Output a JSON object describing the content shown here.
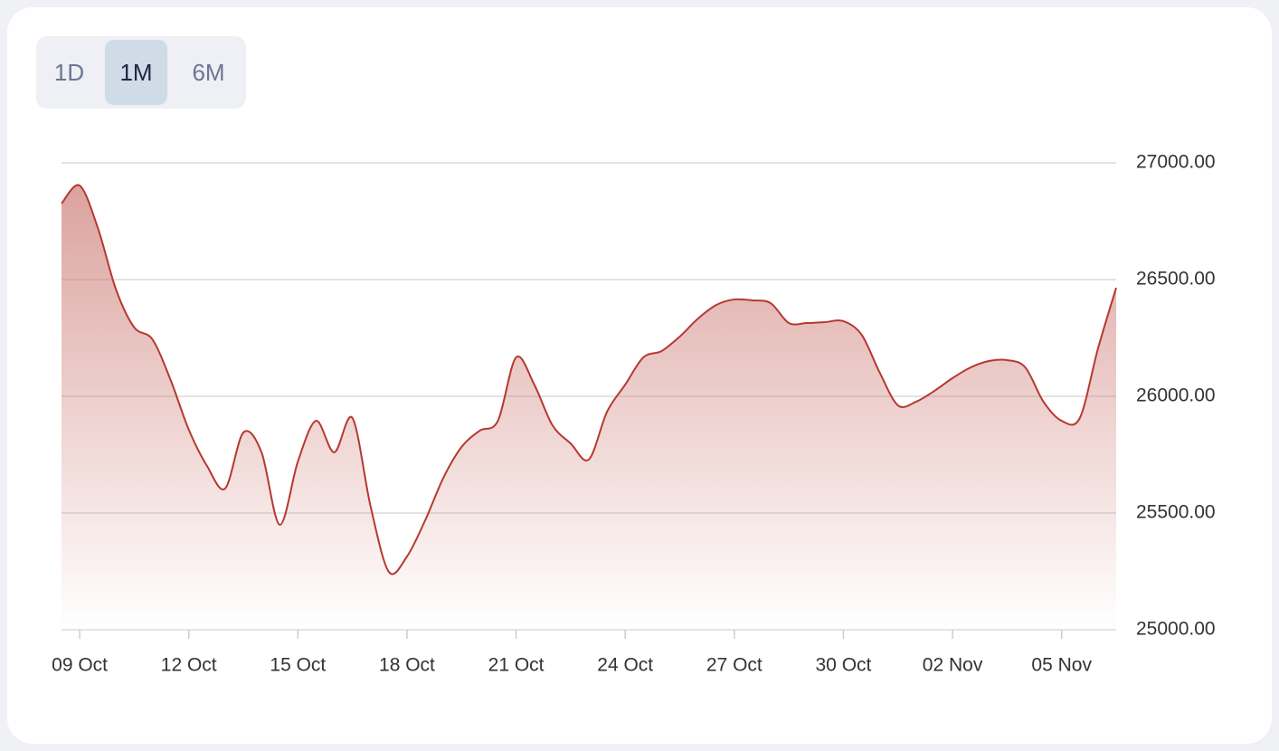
{
  "range_selector": {
    "options": [
      "1D",
      "1M",
      "6M"
    ],
    "selected": 1
  },
  "chart_data": {
    "type": "area",
    "categories": [
      null,
      "09 Oct",
      null,
      null,
      null,
      null,
      null,
      "12 Oct",
      null,
      null,
      null,
      null,
      null,
      "15 Oct",
      null,
      null,
      null,
      null,
      null,
      "18 Oct",
      null,
      null,
      null,
      null,
      null,
      "21 Oct",
      null,
      null,
      null,
      null,
      null,
      "24 Oct",
      null,
      null,
      null,
      null,
      null,
      "27 Oct",
      null,
      null,
      null,
      null,
      null,
      "30 Oct",
      null,
      null,
      null,
      null,
      null,
      "02 Nov",
      null,
      null,
      null,
      null,
      null,
      "05 Nov",
      null,
      null,
      null
    ],
    "series": [
      {
        "color": "#b5392f",
        "values": [
          26826,
          26903,
          26721,
          26457,
          26295,
          26244,
          26070,
          25857,
          25702,
          25605,
          25845,
          25760,
          25450,
          25721,
          25895,
          25760,
          25907,
          25527,
          25248,
          25314,
          25469,
          25651,
          25783,
          25853,
          25895,
          26167,
          26050,
          25876,
          25798,
          25729,
          25934,
          26050,
          26167,
          26194,
          26256,
          26333,
          26391,
          26415,
          26411,
          26399,
          26314,
          26314,
          26318,
          26322,
          26264,
          26101,
          25961,
          25977,
          26023,
          26078,
          26124,
          26151,
          26155,
          26124,
          25977,
          25895,
          25907,
          26205,
          26465
        ]
      }
    ],
    "ylim": [
      25000,
      27000
    ],
    "yticks": [
      {
        "value": 25000,
        "label": "25000.00"
      },
      {
        "value": 25500,
        "label": "25500.00"
      },
      {
        "value": 26000,
        "label": "26000.00"
      },
      {
        "value": 26500,
        "label": "26500.00"
      },
      {
        "value": 27000,
        "label": "27000.00"
      }
    ],
    "grid": true
  }
}
